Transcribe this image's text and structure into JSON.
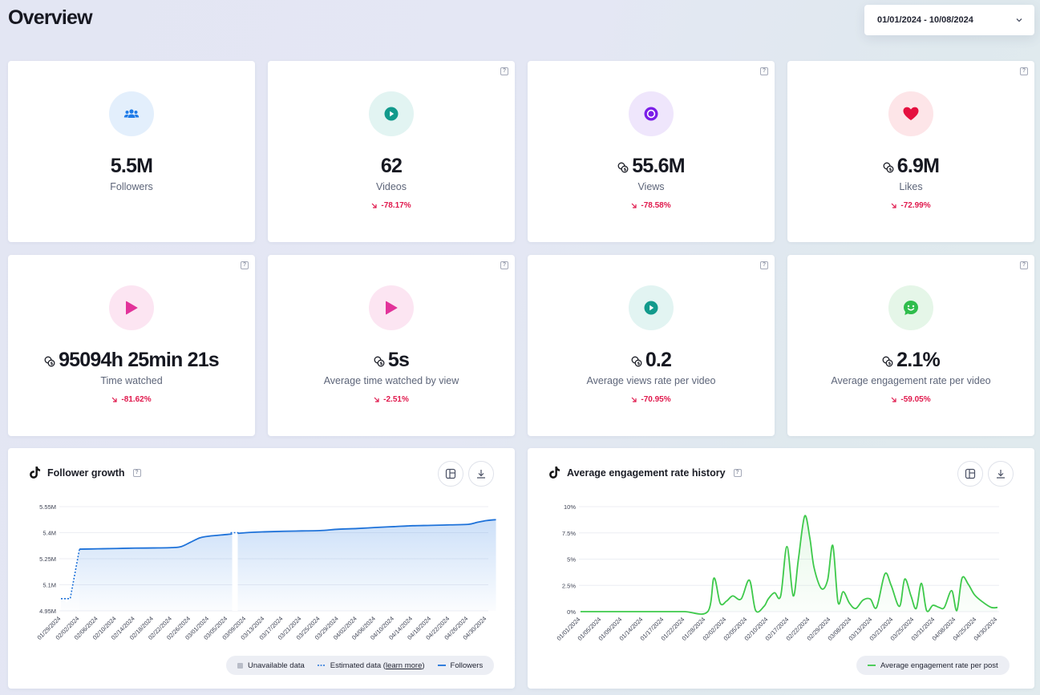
{
  "title": "Overview",
  "date_range": "01/01/2024 - 10/08/2024",
  "help_glyph": "?",
  "stats": [
    {
      "value": "5.5M",
      "label": "Followers",
      "delta": "",
      "icon": "users-icon",
      "icon_color": "#1e7be8",
      "bg": "#e3effc",
      "coins": false,
      "help": false
    },
    {
      "value": "62",
      "label": "Videos",
      "delta": "-78.17%",
      "icon": "play-circle-icon",
      "icon_color": "#129a8c",
      "bg": "#e2f4f2",
      "coins": false,
      "help": true
    },
    {
      "value": "55.6M",
      "label": "Views",
      "delta": "-78.58%",
      "icon": "eye-circle-icon",
      "icon_color": "#7b1fe8",
      "bg": "#efe6fc",
      "coins": true,
      "help": true
    },
    {
      "value": "6.9M",
      "label": "Likes",
      "delta": "-72.99%",
      "icon": "heart-icon",
      "icon_color": "#e5103f",
      "bg": "#fde5e8",
      "coins": true,
      "help": true
    },
    {
      "value": "95094h 25min 21s",
      "label": "Time watched",
      "delta": "-81.62%",
      "icon": "play-icon",
      "icon_color": "#e2339a",
      "bg": "#fce5f2",
      "coins": true,
      "help": true
    },
    {
      "value": "5s",
      "label": "Average time watched by view",
      "delta": "-2.51%",
      "icon": "play-icon",
      "icon_color": "#e2339a",
      "bg": "#fce5f2",
      "coins": true,
      "help": true
    },
    {
      "value": "0.2",
      "label": "Average views rate per video",
      "delta": "-70.95%",
      "icon": "play-circle-icon",
      "icon_color": "#129a8c",
      "bg": "#e2f4f2",
      "coins": true,
      "help": true
    },
    {
      "value": "2.1%",
      "label": "Average engagement rate per video",
      "delta": "-59.05%",
      "icon": "smile-chat-icon",
      "icon_color": "#2fbd4c",
      "bg": "#e5f6e8",
      "coins": true,
      "help": true
    }
  ],
  "chart_data": [
    {
      "type": "area",
      "title": "Follower growth",
      "ylim": [
        4.95,
        5.55
      ],
      "y_ticks": [
        "5.55M",
        "5.4M",
        "5.25M",
        "5.1M",
        "4.95M"
      ],
      "y_tick_values": [
        5.55,
        5.4,
        5.25,
        5.1,
        4.95
      ],
      "x_tick_labels": [
        "01/29/2024",
        "02/02/2024",
        "02/06/2024",
        "02/10/2024",
        "02/14/2024",
        "02/18/2024",
        "02/22/2024",
        "02/26/2024",
        "03/01/2024",
        "03/05/2024",
        "03/09/2024",
        "03/13/2024",
        "03/17/2024",
        "03/21/2024",
        "03/25/2024",
        "03/29/2024",
        "04/02/2024",
        "04/06/2024",
        "04/10/2024",
        "04/14/2024",
        "04/18/2024",
        "04/22/2024",
        "04/26/2024",
        "04/30/2024"
      ],
      "series": [
        {
          "name": "Followers",
          "color": "#1e72d9",
          "x": [
            0,
            0.5,
            1,
            2,
            3,
            4,
            5,
            6,
            6.5,
            7,
            7.5,
            8,
            9,
            10,
            11,
            12,
            13,
            14,
            15,
            16,
            17,
            18,
            19,
            20,
            21,
            22,
            22.5,
            23,
            23.5
          ],
          "values": [
            5.02,
            5.02,
            5.305,
            5.307,
            5.309,
            5.311,
            5.312,
            5.314,
            5.32,
            5.345,
            5.37,
            5.38,
            5.39,
            5.4,
            5.405,
            5.408,
            5.41,
            5.412,
            5.42,
            5.424,
            5.43,
            5.435,
            5.44,
            5.442,
            5.445,
            5.448,
            5.46,
            5.47,
            5.475
          ]
        }
      ],
      "estimated_x_range": [
        0,
        1
      ],
      "unavailable_x_range": [
        9.25,
        9.55
      ],
      "legend": [
        "Unavailable data",
        "Estimated data (",
        "learn more",
        ")",
        "Followers"
      ]
    },
    {
      "type": "line",
      "title": "Average engagement rate history",
      "ylim": [
        0,
        10
      ],
      "y_ticks": [
        "10%",
        "7.5%",
        "5%",
        "2.5%",
        "0%"
      ],
      "y_tick_values": [
        10,
        7.5,
        5,
        2.5,
        0
      ],
      "x_tick_labels": [
        "01/01/2024",
        "01/05/2024",
        "01/09/2024",
        "01/14/2024",
        "01/17/2024",
        "01/22/2024",
        "01/28/2024",
        "02/02/2024",
        "02/05/2024",
        "02/10/2024",
        "02/17/2024",
        "02/22/2024",
        "02/29/2024",
        "03/08/2024",
        "03/13/2024",
        "03/21/2024",
        "03/25/2024",
        "03/31/2024",
        "04/08/2024",
        "04/25/2024",
        "04/30/2024"
      ],
      "series": [
        {
          "name": "Average engagement rate per post",
          "color": "#3ec94b",
          "x": [
            0,
            1,
            2,
            3,
            4,
            5,
            6.1,
            6.4,
            6.7,
            7.0,
            7.3,
            7.7,
            8.1,
            8.4,
            8.8,
            9.0,
            9.3,
            9.6,
            9.9,
            10.2,
            10.45,
            10.75,
            11.0,
            11.2,
            11.55,
            11.85,
            12.1,
            12.35,
            12.6,
            12.9,
            13.2,
            13.55,
            13.9,
            14.2,
            14.6,
            14.9,
            15.3,
            15.55,
            15.85,
            16.1,
            16.35,
            16.6,
            16.9,
            17.2,
            17.45,
            17.8,
            18.05,
            18.3,
            18.6,
            18.9,
            19.3,
            19.7,
            20.0
          ],
          "values": [
            0,
            0,
            0,
            0,
            0,
            0,
            0,
            3.2,
            0.8,
            1.0,
            1.5,
            1.2,
            3.0,
            0.1,
            0.5,
            1.2,
            1.8,
            1.5,
            6.2,
            1.5,
            5.0,
            9.1,
            7.0,
            4.2,
            2.2,
            3.0,
            6.3,
            0.9,
            1.9,
            0.8,
            0.3,
            1.1,
            1.2,
            0.4,
            3.6,
            2.5,
            0.5,
            3.1,
            1.5,
            0.3,
            2.7,
            0.1,
            0.6,
            0.4,
            0.4,
            2.0,
            0.1,
            3.2,
            2.6,
            1.6,
            0.9,
            0.4,
            0.4
          ]
        }
      ],
      "legend": [
        "Average engagement rate per post"
      ]
    }
  ]
}
